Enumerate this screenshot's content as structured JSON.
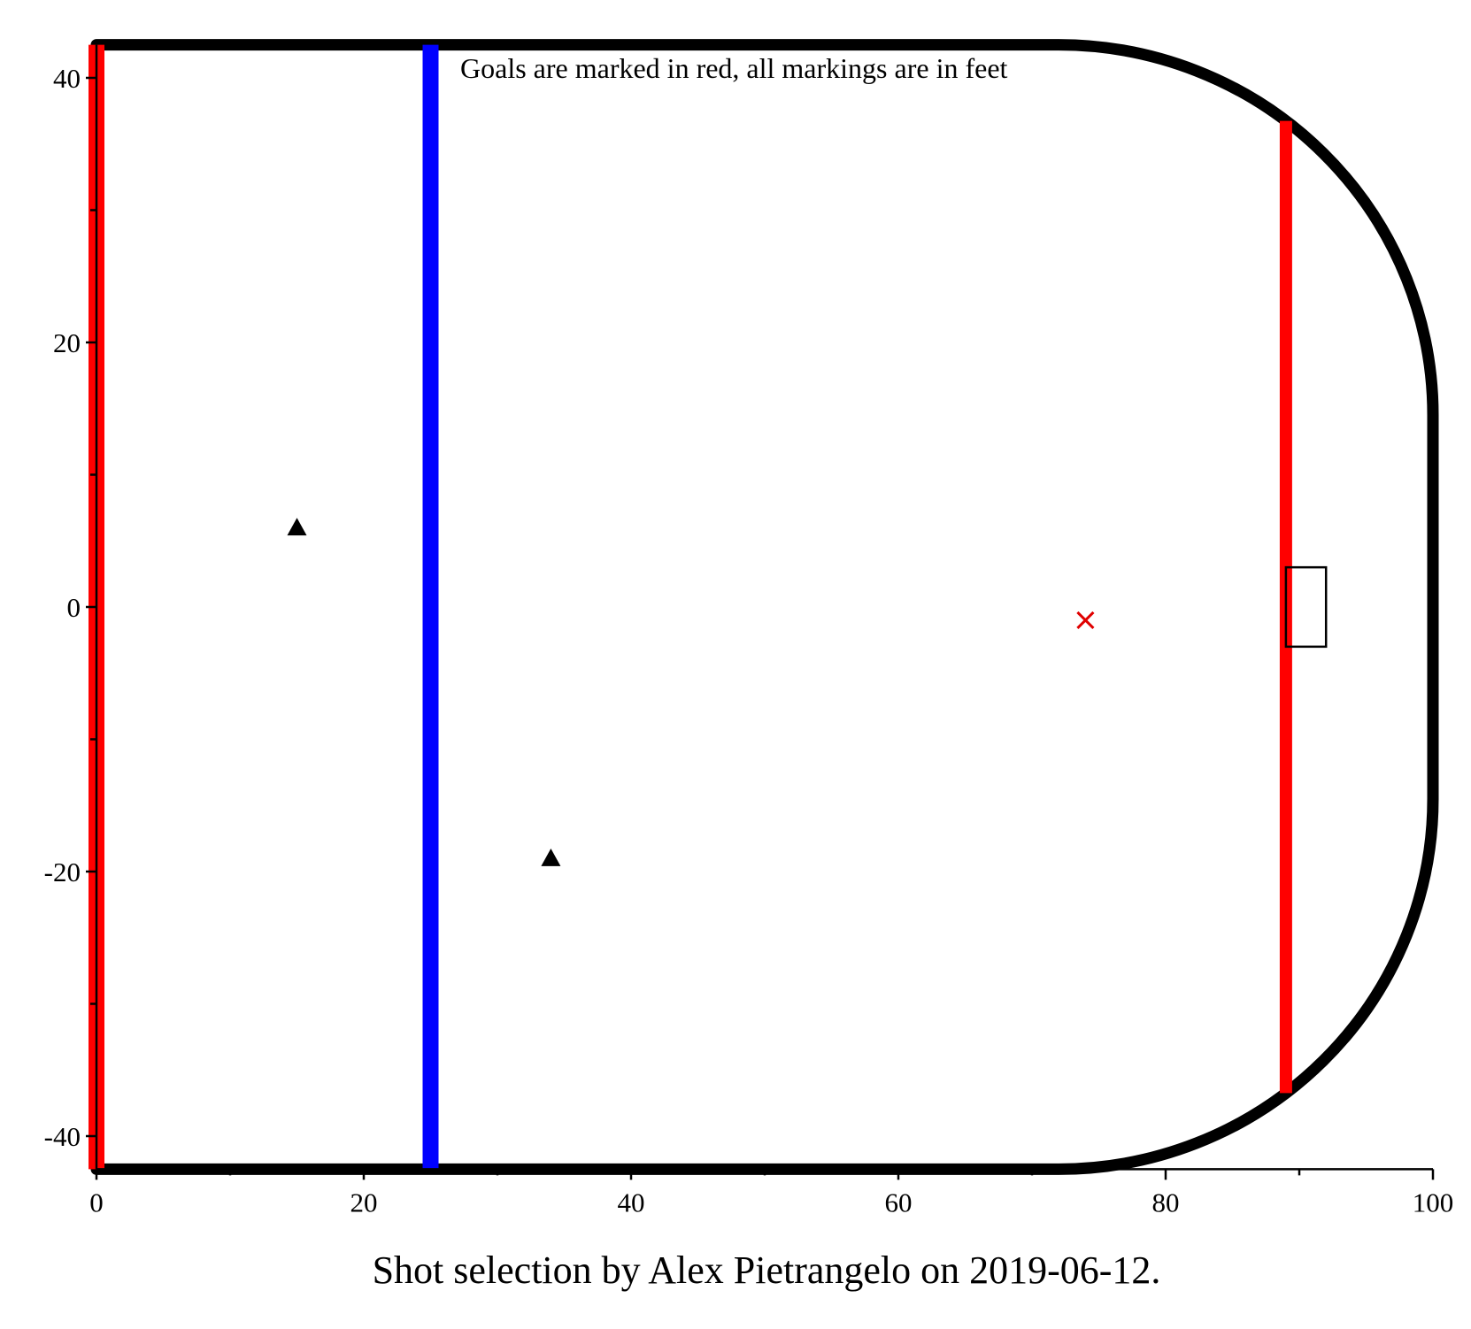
{
  "chart_data": {
    "type": "scatter",
    "title": "",
    "caption": "Shot selection by Alex Pietrangelo on 2019-06-12.",
    "annotation": "Goals are marked in red, all markings are in feet",
    "xlabel": "",
    "ylabel": "",
    "xlim": [
      0,
      100
    ],
    "ylim": [
      -43,
      43
    ],
    "x_ticks": [
      "0",
      "20",
      "40",
      "60",
      "80",
      "100"
    ],
    "y_ticks": [
      "-40",
      "-20",
      "0",
      "20",
      "40"
    ],
    "grid": false,
    "rink": {
      "center_red_line_x": 0,
      "blue_line_x": 25,
      "goal_line_x": 89,
      "boards_half_width": 42.5,
      "corner_radius": 28,
      "end_boards_x": 100,
      "goal_crease": {
        "x0": 89,
        "x1": 92,
        "y0": -3,
        "y1": 3
      }
    },
    "series": [
      {
        "marker": "triangle",
        "color": "#000000",
        "points": [
          {
            "x": 15,
            "y": 6
          },
          {
            "x": 34,
            "y": -19
          }
        ]
      },
      {
        "marker": "x",
        "color": "#e00000",
        "points": [
          {
            "x": 74,
            "y": -1
          }
        ]
      }
    ],
    "colors": {
      "red_line": "#ff0000",
      "blue_line": "#0000ff",
      "boards": "#000000",
      "goal_marker": "#e00000"
    }
  }
}
